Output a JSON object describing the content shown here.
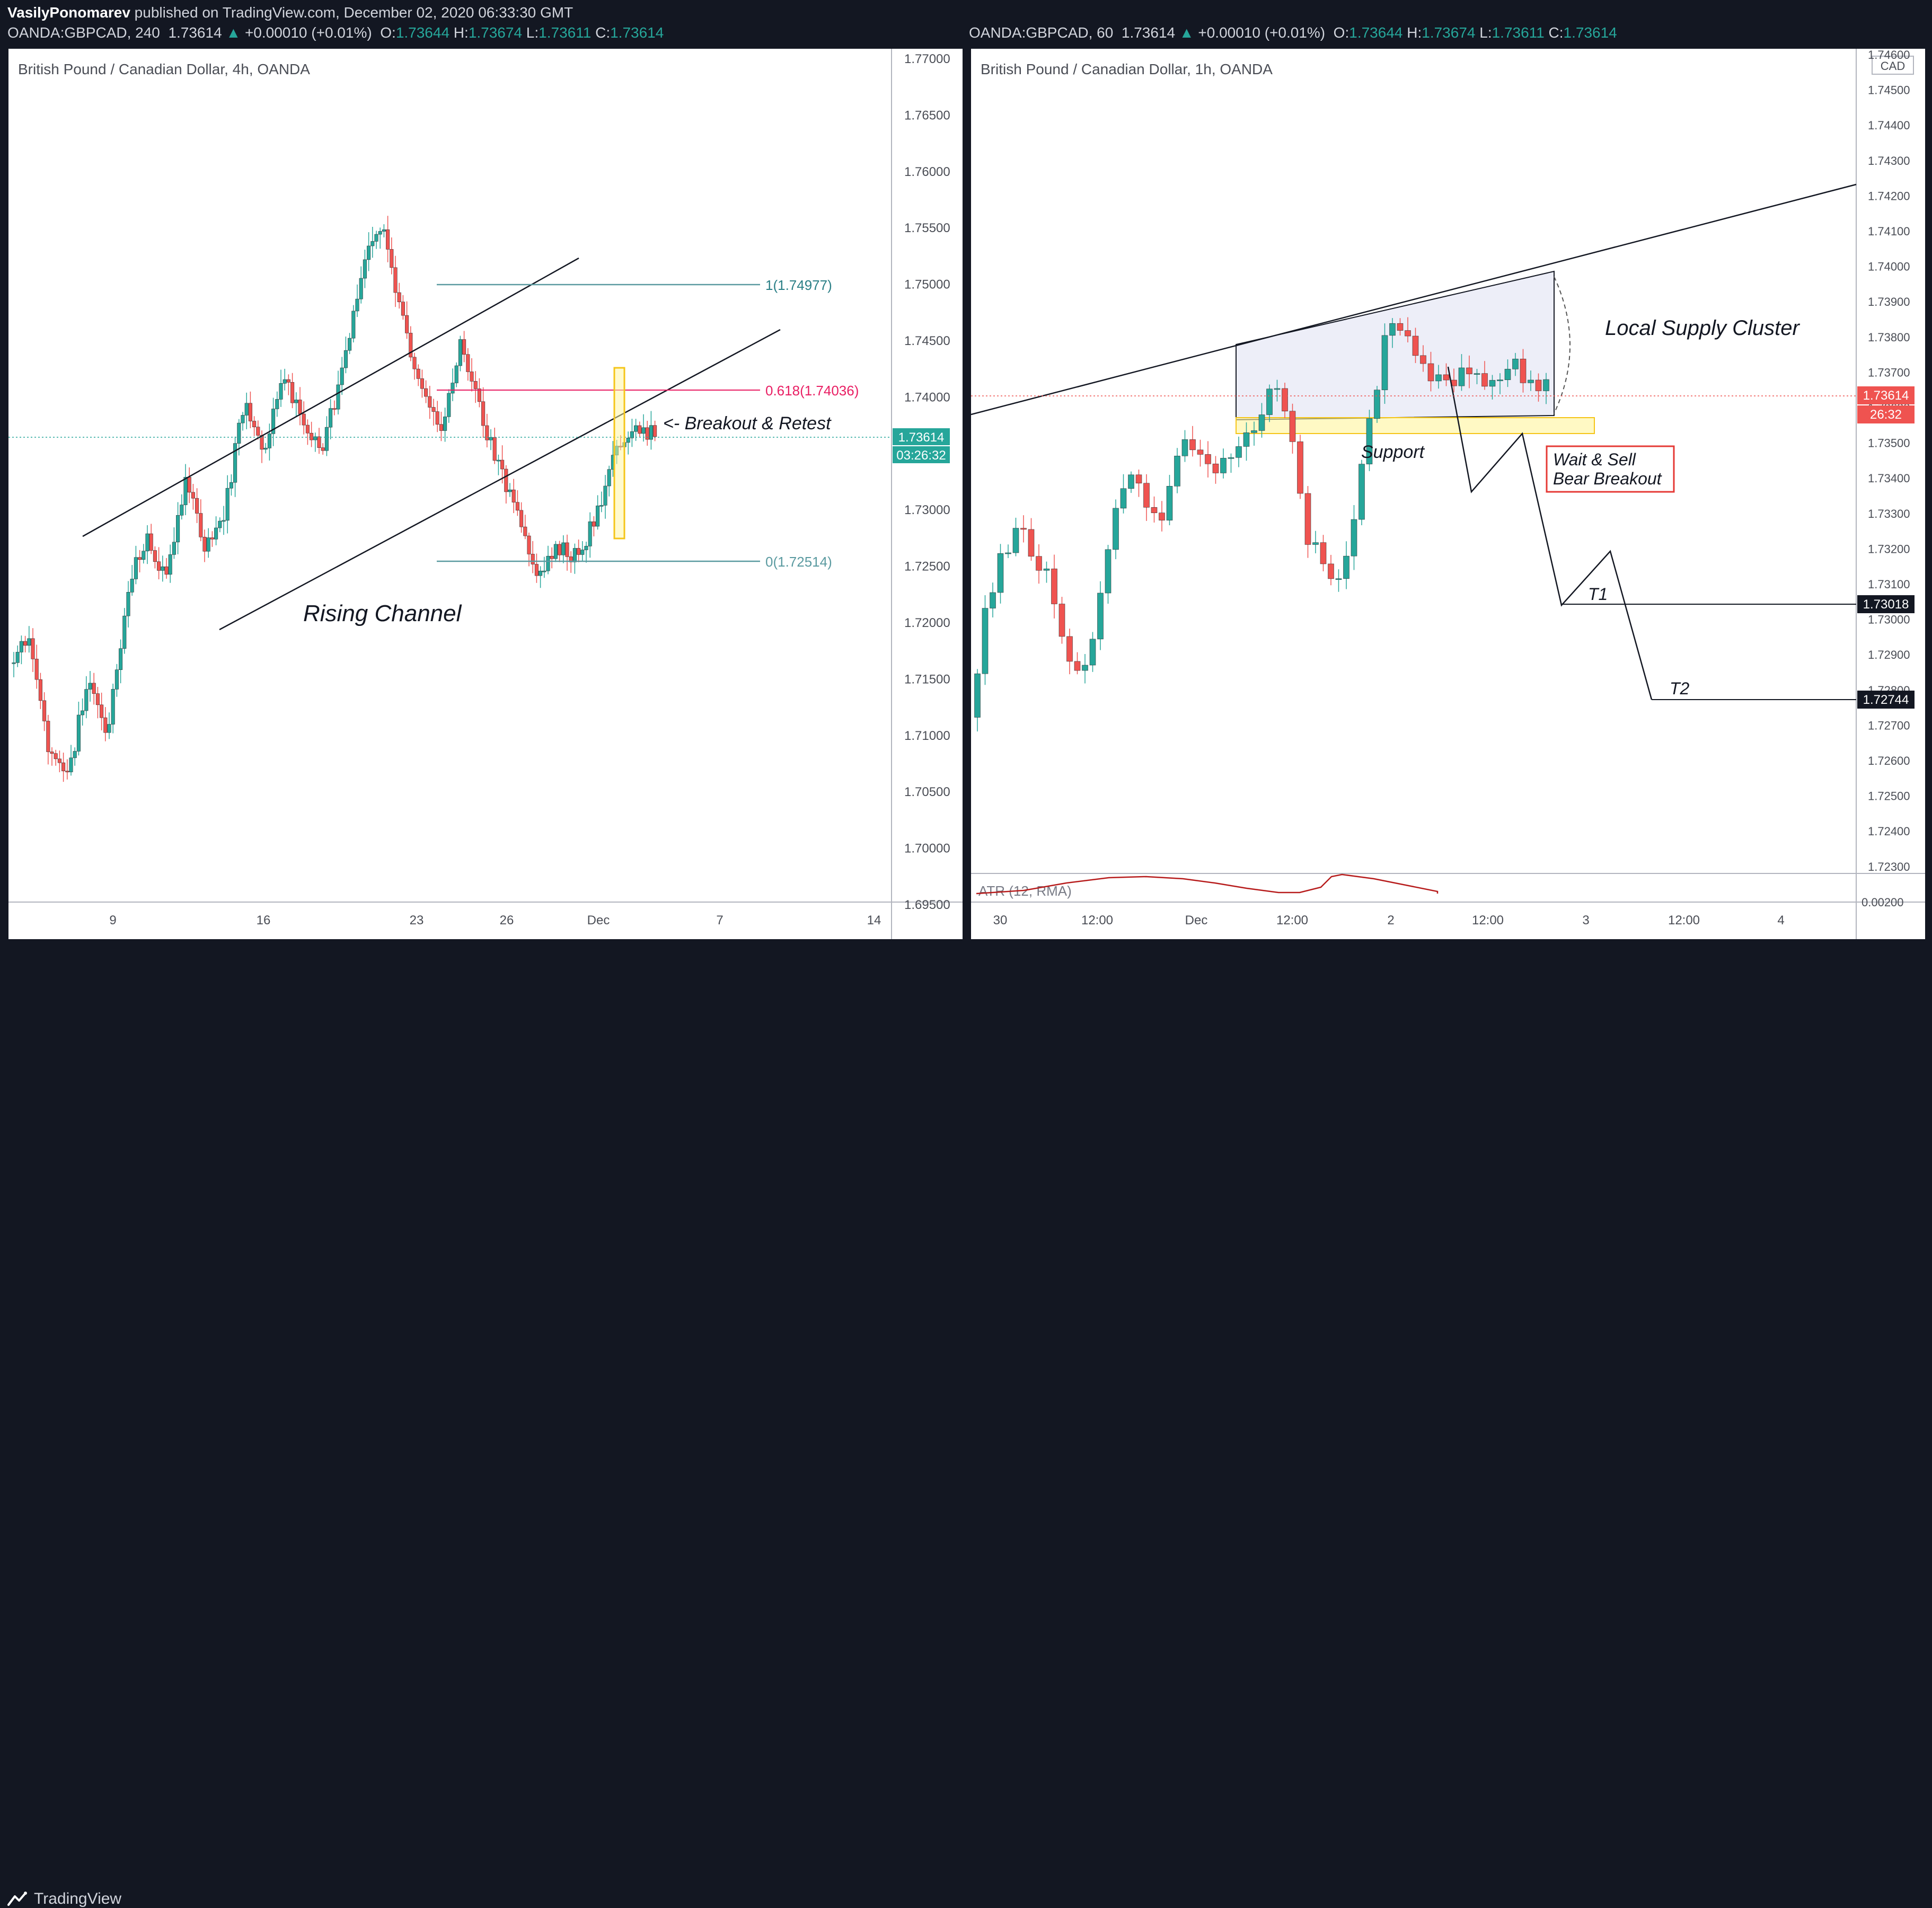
{
  "header": {
    "author": "VasilyPonomarev",
    "published_text": " published on TradingView.com, December 02, 2020 06:33:30 GMT"
  },
  "left_chart": {
    "symbol": "OANDA:GBPCAD, 240",
    "price": "1.73614",
    "change": "+0.00010 (+0.01%)",
    "ohlc": {
      "o": "1.73644",
      "h": "1.73674",
      "l": "1.73611",
      "c": "1.73614"
    },
    "title": "British Pound / Canadian Dollar, 4h, OANDA",
    "y_ticks": [
      "1.77000",
      "1.76500",
      "1.76000",
      "1.75500",
      "1.75000",
      "1.74500",
      "1.74000",
      "1.73500",
      "1.73000",
      "1.72500",
      "1.72000",
      "1.71500",
      "1.71000",
      "1.70500",
      "1.70000",
      "1.69500"
    ],
    "x_ticks": [
      "9",
      "16",
      "23",
      "26",
      "Dec",
      "7",
      "14"
    ],
    "price_tag": "1.73614",
    "countdown": "03:26:32",
    "fib_1": "1(1.74977)",
    "fib_618": "0.618(1.74036)",
    "fib_0": "0(1.72514)",
    "annotation_breakout": "<- Breakout & Retest",
    "annotation_channel": "Rising Channel"
  },
  "right_chart": {
    "symbol": "OANDA:GBPCAD, 60",
    "price": "1.73614",
    "change": "+0.00010 (+0.01%)",
    "ohlc": {
      "o": "1.73644",
      "h": "1.73674",
      "l": "1.73611",
      "c": "1.73614"
    },
    "title": "British Pound / Canadian Dollar, 1h, OANDA",
    "currency_label": "CAD",
    "y_ticks": [
      "1.74600",
      "1.74500",
      "1.74400",
      "1.74300",
      "1.74200",
      "1.74100",
      "1.74000",
      "1.73900",
      "1.73800",
      "1.73700",
      "1.73600",
      "1.73500",
      "1.73400",
      "1.73300",
      "1.73200",
      "1.73100",
      "1.73000",
      "1.72900",
      "1.72800",
      "1.72700",
      "1.72600",
      "1.72500",
      "1.72400",
      "1.72300"
    ],
    "x_ticks": [
      "30",
      "12:00",
      "Dec",
      "12:00",
      "2",
      "12:00",
      "3",
      "12:00",
      "4"
    ],
    "price_tag": "1.73614",
    "countdown": "26:32",
    "t1_tag": "1.73018",
    "t2_tag": "1.72744",
    "annotation_supply": "Local Supply Cluster",
    "annotation_support": "Support",
    "annotation_wait_line1": "Wait & Sell",
    "annotation_wait_line2": "Bear Breakout",
    "annotation_t1": "T1",
    "annotation_t2": "T2",
    "atr_label": "ATR (12, RMA)",
    "atr_value": "0.00200"
  },
  "footer": {
    "brand": "TradingView"
  },
  "colors": {
    "bull": "#26a69a",
    "bear": "#ef5350",
    "fib_pink": "#e91e63",
    "fib_teal": "#2a7f86",
    "highlight": "#fff59d"
  }
}
